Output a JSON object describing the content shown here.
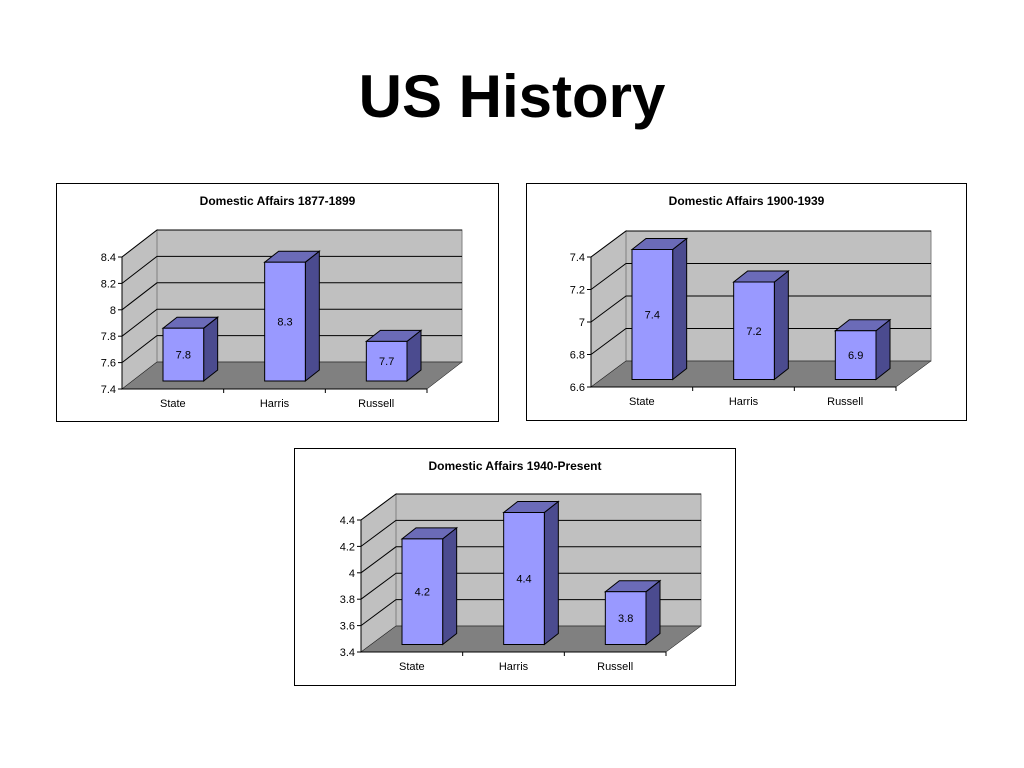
{
  "slide": {
    "title": "US History"
  },
  "chart_data": [
    {
      "type": "bar",
      "title": "Domestic Affairs 1877-1899",
      "categories": [
        "State",
        "Harris",
        "Russell"
      ],
      "values": [
        7.8,
        8.3,
        7.7
      ],
      "ylim": [
        7.4,
        8.4
      ],
      "yticks": [
        "7.4",
        "7.6",
        "7.8",
        "8",
        "8.2",
        "8.4"
      ],
      "data_labels": [
        "7.8",
        "8.3",
        "7.7"
      ],
      "grid": true,
      "style": "3d",
      "colors": {
        "bar_front": "#9999ff",
        "bar_side": "#4b4b8f",
        "bar_top": "#6b6bb8",
        "wall": "#c0c0c0",
        "floor": "#808080"
      }
    },
    {
      "type": "bar",
      "title": "Domestic Affairs 1900-1939",
      "categories": [
        "State",
        "Harris",
        "Russell"
      ],
      "values": [
        7.4,
        7.2,
        6.9
      ],
      "ylim": [
        6.6,
        7.4
      ],
      "yticks": [
        "6.6",
        "6.8",
        "7",
        "7.2",
        "7.4"
      ],
      "data_labels": [
        "7.4",
        "7.2",
        "6.9"
      ],
      "grid": true,
      "style": "3d",
      "colors": {
        "bar_front": "#9999ff",
        "bar_side": "#4b4b8f",
        "bar_top": "#6b6bb8",
        "wall": "#c0c0c0",
        "floor": "#808080"
      }
    },
    {
      "type": "bar",
      "title": "Domestic Affairs 1940-Present",
      "categories": [
        "State",
        "Harris",
        "Russell"
      ],
      "values": [
        4.2,
        4.4,
        3.8
      ],
      "ylim": [
        3.4,
        4.4
      ],
      "yticks": [
        "3.4",
        "3.6",
        "3.8",
        "4",
        "4.2",
        "4.4"
      ],
      "data_labels": [
        "4.2",
        "4.4",
        "3.8"
      ],
      "grid": true,
      "style": "3d",
      "colors": {
        "bar_front": "#9999ff",
        "bar_side": "#4b4b8f",
        "bar_top": "#6b6bb8",
        "wall": "#c0c0c0",
        "floor": "#808080"
      }
    }
  ]
}
